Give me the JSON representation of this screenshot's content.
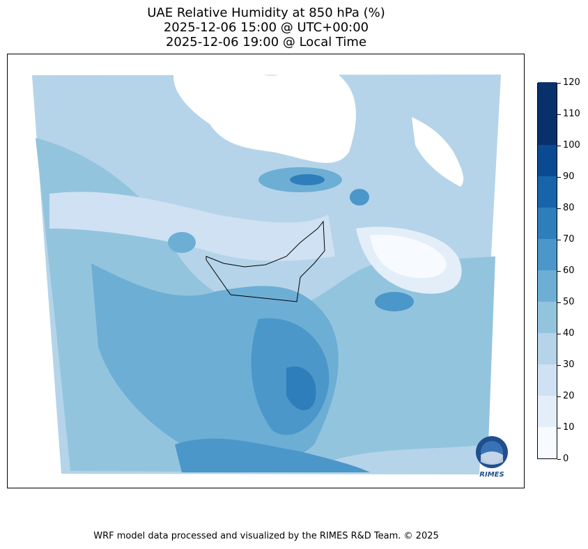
{
  "title": {
    "line1": "UAE Relative Humidity at 850 hPa (%)",
    "line2": "2025-12-06 15:00 @ UTC+00:00",
    "line3": "2025-12-06 19:00 @ Local Time"
  },
  "colorbar": {
    "levels": [
      0,
      10,
      20,
      30,
      40,
      50,
      60,
      70,
      80,
      90,
      100,
      110,
      120
    ],
    "labels": [
      "0",
      "10",
      "20",
      "30",
      "40",
      "50",
      "60",
      "70",
      "80",
      "90",
      "100",
      "110",
      "120"
    ],
    "colors": [
      "#f7fbff",
      "#e3eef9",
      "#cfe1f2",
      "#b5d4e9",
      "#93c4de",
      "#6daed5",
      "#4b97c9",
      "#2f7ebc",
      "#1864aa",
      "#0a4a90",
      "#08306b",
      "#08306b"
    ]
  },
  "logo": {
    "text": "RIMES"
  },
  "footer": {
    "text": "WRF model data processed and visualized by the RIMES R&D Team. © 2025"
  }
}
